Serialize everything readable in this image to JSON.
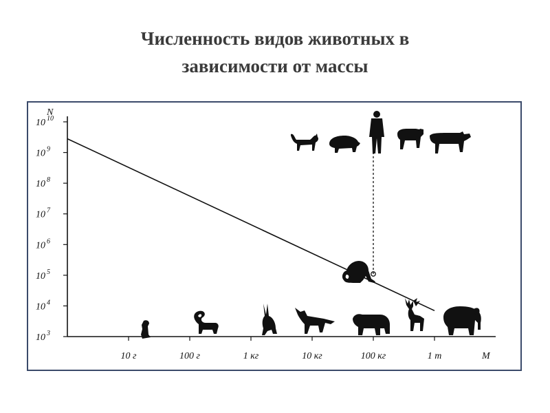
{
  "slide": {
    "title_line1": "Численность видов животных в",
    "title_line2": "зависимости от массы"
  },
  "chart_data": {
    "type": "line",
    "title": "Численность видов животных в зависимости от массы",
    "xlabel": "M",
    "ylabel": "N",
    "x_scale": "log",
    "y_scale": "log",
    "x_ticks": [
      {
        "value_kg": 0.01,
        "label": "10 г"
      },
      {
        "value_kg": 0.1,
        "label": "100 г"
      },
      {
        "value_kg": 1,
        "label": "1 кг"
      },
      {
        "value_kg": 10,
        "label": "10 кг"
      },
      {
        "value_kg": 100,
        "label": "100 кг"
      },
      {
        "value_kg": 1000,
        "label": "1 т"
      }
    ],
    "y_ticks": [
      {
        "exp": 3,
        "base": "10",
        "sup": "3"
      },
      {
        "exp": 4,
        "base": "10",
        "sup": "4"
      },
      {
        "exp": 5,
        "base": "10",
        "sup": "5"
      },
      {
        "exp": 6,
        "base": "10",
        "sup": "6"
      },
      {
        "exp": 7,
        "base": "10",
        "sup": "7"
      },
      {
        "exp": 8,
        "base": "10",
        "sup": "8"
      },
      {
        "exp": 9,
        "base": "10",
        "sup": "9"
      },
      {
        "exp": 10,
        "base": "10",
        "sup": "10"
      }
    ],
    "xlim_kg": [
      0.001,
      10000
    ],
    "ylim": [
      1000,
      10000000000
    ],
    "grid": false,
    "series": [
      {
        "points": [
          {
            "x_kg": 0.001,
            "y": 2800000000
          },
          {
            "x_kg": 1000,
            "y": 7000
          }
        ]
      }
    ],
    "annotations": [
      {
        "type": "marker",
        "x_kg": 100,
        "y": 110000
      },
      {
        "type": "dashed-vertical",
        "x_kg": 100,
        "y_from": 110000,
        "y_to": 8000000000
      }
    ],
    "silhouettes_bottom": [
      "mouse-icon",
      "skunk-icon",
      "hare-icon",
      "fox-icon",
      "bear-icon",
      "deer-icon",
      "elephant-icon"
    ],
    "silhouettes_on_line": [
      "monkey-icon"
    ],
    "silhouettes_top": [
      "cat-icon",
      "pig-icon",
      "human-icon",
      "sheep-icon",
      "cow-icon"
    ]
  }
}
